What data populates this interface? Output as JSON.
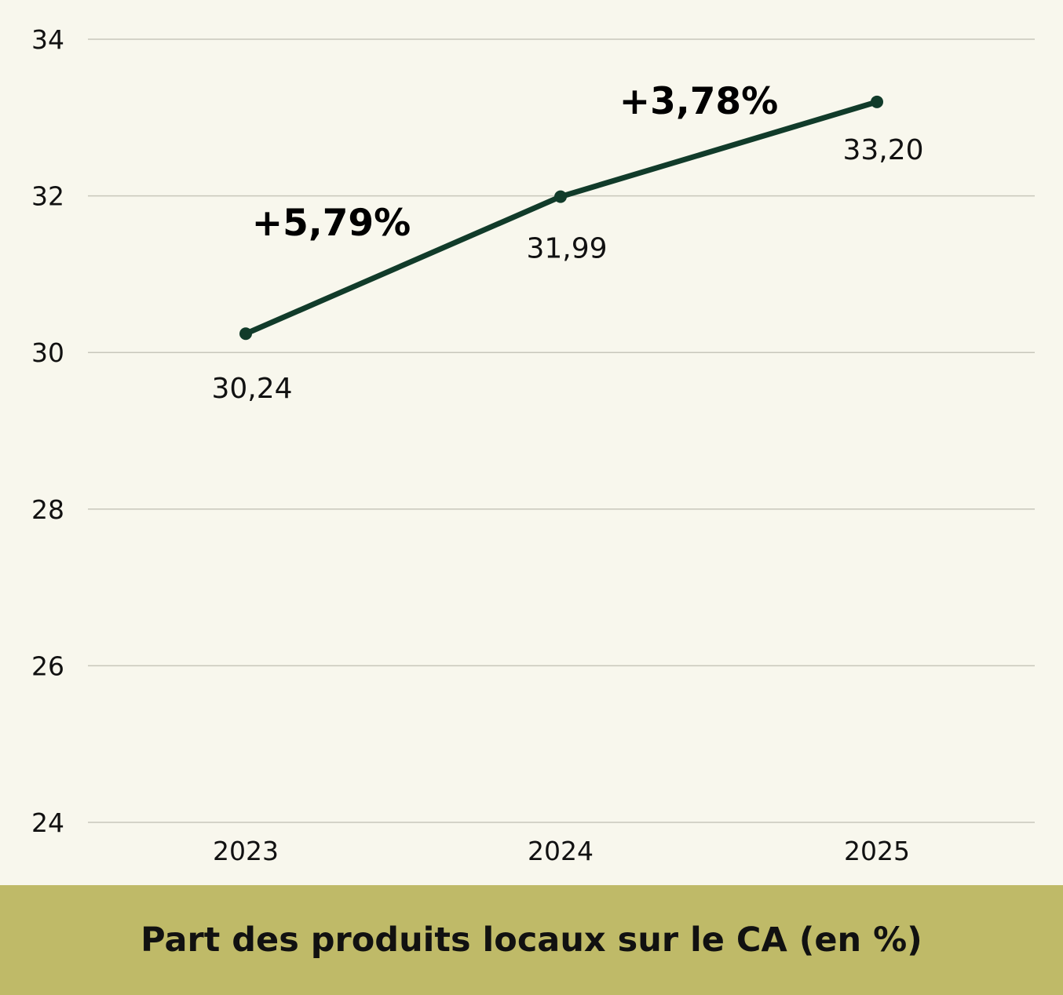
{
  "caption": "Part des produits locaux sur le CA (en %)",
  "colors": {
    "background": "#f8f7ed",
    "caption_bar": "#bfba68",
    "line": "#113b2a",
    "grid": "#c8c7bb"
  },
  "chart_data": {
    "type": "line",
    "title": "Part des produits locaux sur le CA (en %)",
    "categories": [
      "2023",
      "2024",
      "2025"
    ],
    "series": [
      {
        "values": [
          30.24,
          31.99,
          33.2
        ],
        "labels": [
          "30,24",
          "31,99",
          "33,20"
        ]
      }
    ],
    "ylim": [
      24,
      34
    ],
    "yticks": [
      24,
      26,
      28,
      30,
      32,
      34
    ],
    "grid": true,
    "annotations": [
      {
        "text": "+5,79%",
        "between": [
          "2023",
          "2024"
        ]
      },
      {
        "text": "+3,78%",
        "between": [
          "2024",
          "2025"
        ]
      }
    ]
  }
}
